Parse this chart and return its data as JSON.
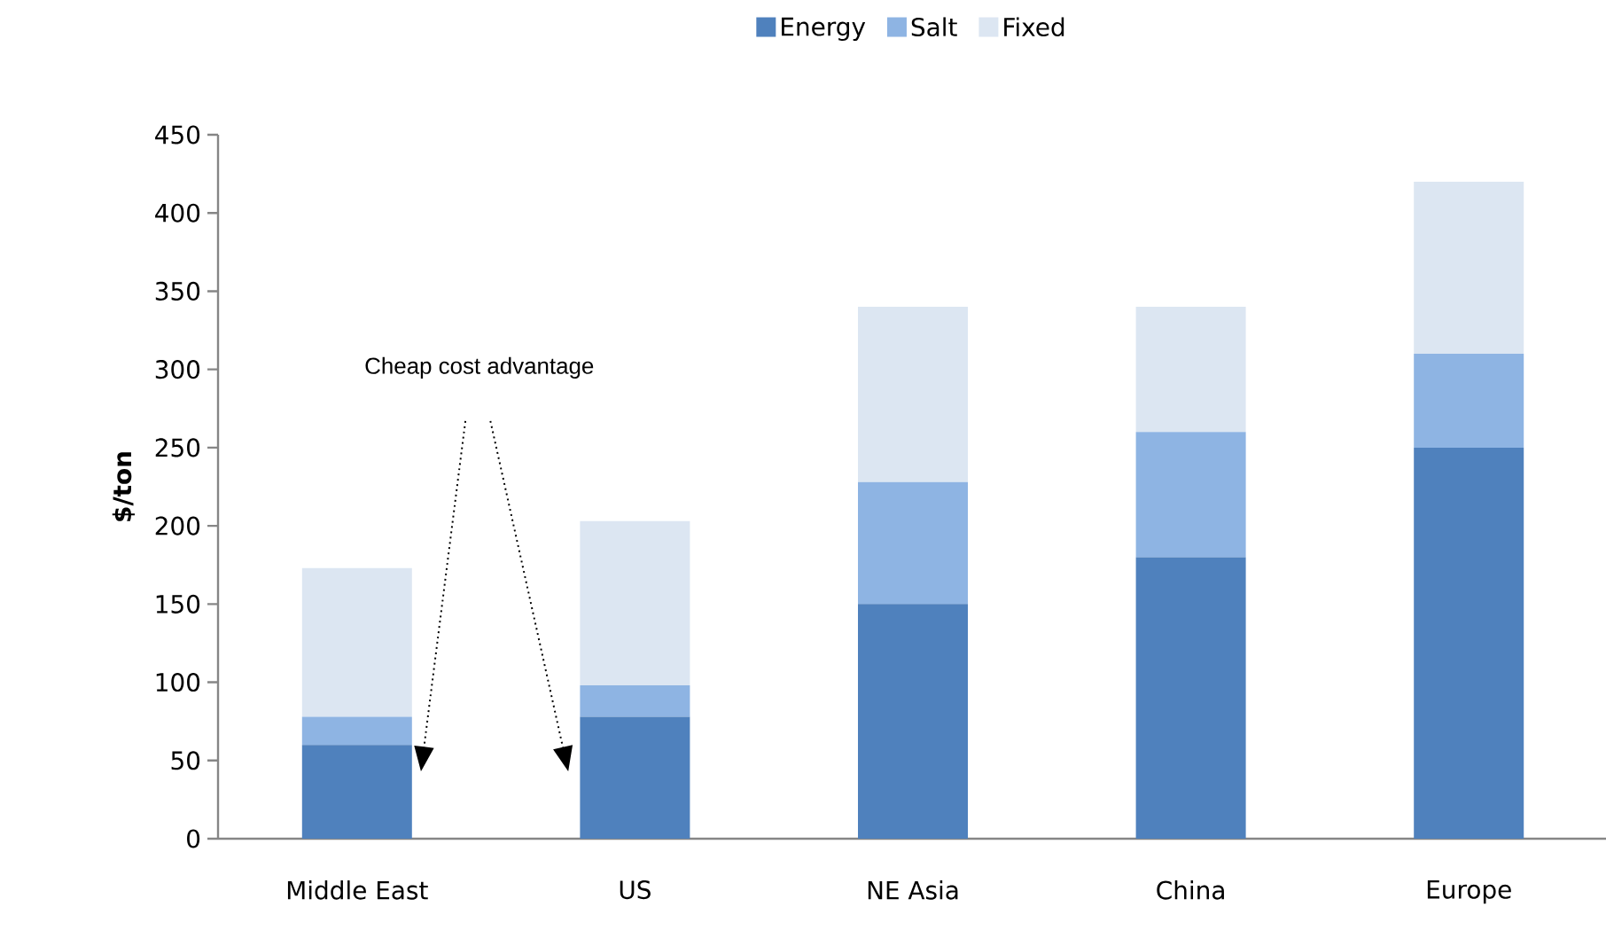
{
  "chart_data": {
    "type": "bar",
    "stacked": true,
    "ylabel": "$/ton",
    "categories": [
      "Middle East",
      "US",
      "NE Asia",
      "China",
      "Europe"
    ],
    "series": [
      {
        "name": "Energy",
        "color": "#4f81bd",
        "values": [
          60,
          78,
          150,
          180,
          250
        ]
      },
      {
        "name": "Salt",
        "color": "#8eb4e3",
        "values": [
          18,
          20,
          78,
          80,
          60
        ]
      },
      {
        "name": "Fixed",
        "color": "#dce6f2",
        "values": [
          95,
          105,
          112,
          80,
          110
        ]
      }
    ],
    "ylim": [
      0,
      450
    ],
    "yticks": [
      0,
      50,
      100,
      150,
      200,
      250,
      300,
      350,
      400,
      450
    ],
    "legend": "top",
    "grid": false,
    "annotations": [
      "Cheap cost advantage"
    ]
  }
}
